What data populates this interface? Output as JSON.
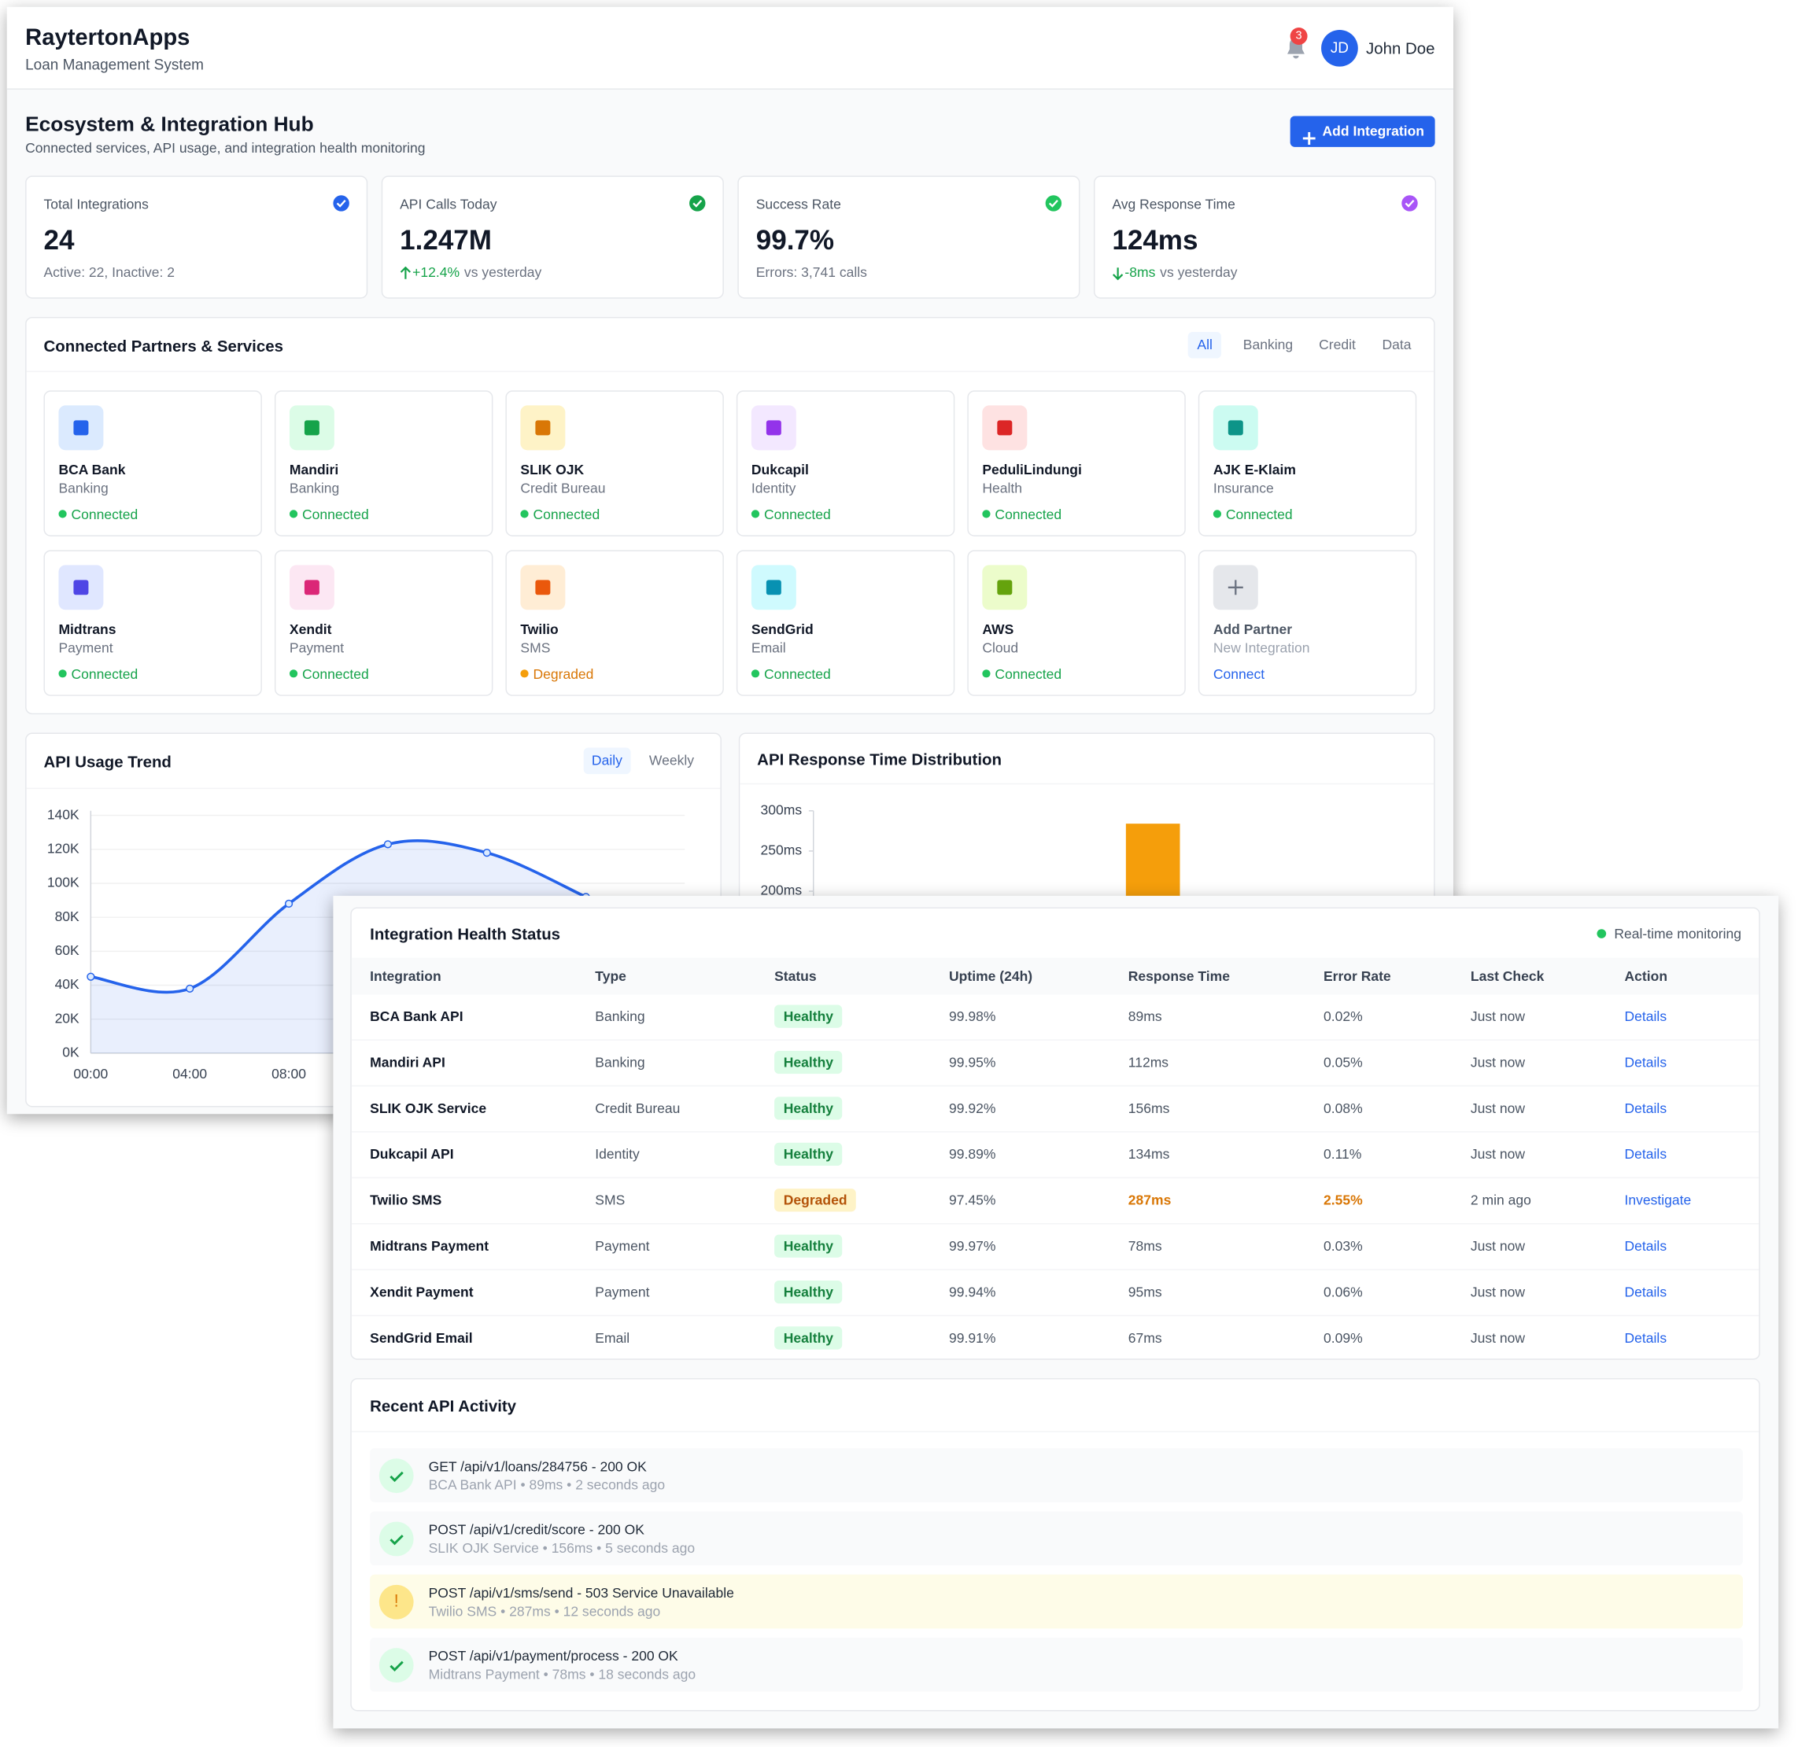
{
  "header": {
    "brand": "RaytertonApps",
    "subtitle": "Loan Management System",
    "notifications": "3",
    "avatar": "JD",
    "user": "John Doe"
  },
  "page": {
    "title": "Ecosystem & Integration Hub",
    "subtitle": "Connected services, API usage, and integration health monitoring",
    "button": "Add Integration"
  },
  "stats": [
    {
      "label": "Total Integrations",
      "value": "24",
      "note": "Active: 22, Inactive: 2",
      "icon_color": "#2563eb"
    },
    {
      "label": "API Calls Today",
      "value": "1.247M",
      "change": "+12.4%",
      "note": "vs yesterday",
      "change_color": "#16a34a",
      "icon_color": "#16a34a"
    },
    {
      "label": "Success Rate",
      "value": "99.7%",
      "note": "Errors: 3,741 calls",
      "icon_color": "#22c55e"
    },
    {
      "label": "Avg Response Time",
      "value": "124ms",
      "change": "-8ms",
      "note": "vs yesterday",
      "change_color": "#16a34a",
      "icon_color": "#a855f7"
    }
  ],
  "partners": {
    "title": "Connected Partners & Services",
    "filters": [
      "All",
      "Banking",
      "Credit",
      "Data"
    ],
    "items": [
      {
        "name": "BCA Bank",
        "type": "Banking",
        "status": "Connected",
        "status_color": "#22c55e",
        "icon_bg": "#dbeafe",
        "icon_color": "#2563eb"
      },
      {
        "name": "Mandiri",
        "type": "Banking",
        "status": "Connected",
        "status_color": "#22c55e",
        "icon_bg": "#dcfce7",
        "icon_color": "#16a34a"
      },
      {
        "name": "SLIK OJK",
        "type": "Credit Bureau",
        "status": "Connected",
        "status_color": "#22c55e",
        "icon_bg": "#fef3c7",
        "icon_color": "#d97706"
      },
      {
        "name": "Dukcapil",
        "type": "Identity",
        "status": "Connected",
        "status_color": "#22c55e",
        "icon_bg": "#f3e8ff",
        "icon_color": "#9333ea"
      },
      {
        "name": "PeduliLindungi",
        "type": "Health",
        "status": "Connected",
        "status_color": "#22c55e",
        "icon_bg": "#fee2e2",
        "icon_color": "#dc2626"
      },
      {
        "name": "AJK E-Klaim",
        "type": "Insurance",
        "status": "Connected",
        "status_color": "#22c55e",
        "icon_bg": "#ccfbf1",
        "icon_color": "#0d9488"
      },
      {
        "name": "Midtrans",
        "type": "Payment",
        "status": "Connected",
        "status_color": "#22c55e",
        "icon_bg": "#e0e7ff",
        "icon_color": "#4f46e5"
      },
      {
        "name": "Xendit",
        "type": "Payment",
        "status": "Connected",
        "status_color": "#22c55e",
        "icon_bg": "#fce7f3",
        "icon_color": "#db2777"
      },
      {
        "name": "Twilio",
        "type": "SMS",
        "status": "Degraded",
        "status_color": "#f59e0b",
        "icon_bg": "#ffedd5",
        "icon_color": "#ea580c"
      },
      {
        "name": "SendGrid",
        "type": "Email",
        "status": "Connected",
        "status_color": "#22c55e",
        "icon_bg": "#cffafe",
        "icon_color": "#0891b2"
      },
      {
        "name": "AWS",
        "type": "Cloud",
        "status": "Connected",
        "status_color": "#22c55e",
        "icon_bg": "#ecfccb",
        "icon_color": "#65a30d"
      }
    ],
    "add": {
      "name": "Add Partner",
      "type": "New Integration",
      "action": "Connect"
    }
  },
  "chart_data": [
    {
      "type": "line",
      "title": "API Usage Trend",
      "toggles": [
        "Daily",
        "Weekly"
      ],
      "color": "#2563eb",
      "categories": [
        "00:00",
        "04:00",
        "08:00",
        null,
        null,
        null
      ],
      "values": [
        45000,
        38000,
        88000,
        123000,
        118000,
        92000
      ],
      "ylim": [
        0,
        140000
      ],
      "yticks": [
        {
          "value": 0,
          "label": "0K"
        },
        {
          "value": 20000,
          "label": "20K"
        },
        {
          "value": 40000,
          "label": "40K"
        },
        {
          "value": 60000,
          "label": "60K"
        },
        {
          "value": 80000,
          "label": "80K"
        },
        {
          "value": 100000,
          "label": "100K"
        },
        {
          "value": 120000,
          "label": "120K"
        },
        {
          "value": 140000,
          "label": "140K"
        }
      ],
      "grid": true
    },
    {
      "type": "bar",
      "title": "API Response Time Distribution",
      "color": "#f59e0b",
      "categories": [
        null
      ],
      "values": [
        284
      ],
      "ylim": [
        0,
        300
      ],
      "yticks": [
        {
          "value": 200,
          "label": "200ms"
        },
        {
          "value": 250,
          "label": "250ms"
        },
        {
          "value": 300,
          "label": "300ms"
        }
      ]
    }
  ],
  "health": {
    "title": "Integration Health Status",
    "live": "Real-time monitoring",
    "columns": [
      "Integration",
      "Type",
      "Status",
      "Uptime (24h)",
      "Response Time",
      "Error Rate",
      "Last Check",
      "Action"
    ],
    "rows": [
      {
        "cells": [
          "BCA Bank API",
          "Banking",
          "Healthy",
          "99.98%",
          "89ms",
          "0.02%",
          "Just now",
          "Details"
        ],
        "status_bg": "#dcfce7",
        "status_color": "#15803d"
      },
      {
        "cells": [
          "Mandiri API",
          "Banking",
          "Healthy",
          "99.95%",
          "112ms",
          "0.05%",
          "Just now",
          "Details"
        ],
        "status_bg": "#dcfce7",
        "status_color": "#15803d"
      },
      {
        "cells": [
          "SLIK OJK Service",
          "Credit Bureau",
          "Healthy",
          "99.92%",
          "156ms",
          "0.08%",
          "Just now",
          "Details"
        ],
        "status_bg": "#dcfce7",
        "status_color": "#15803d"
      },
      {
        "cells": [
          "Dukcapil API",
          "Identity",
          "Healthy",
          "99.89%",
          "134ms",
          "0.11%",
          "Just now",
          "Details"
        ],
        "status_bg": "#dcfce7",
        "status_color": "#15803d"
      },
      {
        "cells": [
          "Twilio SMS",
          "SMS",
          "Degraded",
          "97.45%",
          "287ms",
          "2.55%",
          "2 min ago",
          "Investigate"
        ],
        "status_bg": "#fef3c7",
        "status_color": "#b45309",
        "alert_color": "#d97706"
      },
      {
        "cells": [
          "Midtrans Payment",
          "Payment",
          "Healthy",
          "99.97%",
          "78ms",
          "0.03%",
          "Just now",
          "Details"
        ],
        "status_bg": "#dcfce7",
        "status_color": "#15803d"
      },
      {
        "cells": [
          "Xendit Payment",
          "Payment",
          "Healthy",
          "99.94%",
          "95ms",
          "0.06%",
          "Just now",
          "Details"
        ],
        "status_bg": "#dcfce7",
        "status_color": "#15803d"
      },
      {
        "cells": [
          "SendGrid Email",
          "Email",
          "Healthy",
          "99.91%",
          "67ms",
          "0.09%",
          "Just now",
          "Details"
        ],
        "status_bg": "#dcfce7",
        "status_color": "#15803d"
      }
    ]
  },
  "activity": {
    "title": "Recent API Activity",
    "items": [
      {
        "title": "GET /api/v1/loans/284756 - 200 OK",
        "meta": "BCA Bank API • 89ms • 2 seconds ago",
        "color": "#16a34a",
        "icon_bg": "#dcfce7",
        "background": "#f9fafb"
      },
      {
        "title": "POST /api/v1/credit/score - 200 OK",
        "meta": "SLIK OJK Service • 156ms • 5 seconds ago",
        "color": "#16a34a",
        "icon_bg": "#dcfce7",
        "background": "#f9fafb"
      },
      {
        "title": "POST /api/v1/sms/send - 503 Service Unavailable",
        "meta": "Twilio SMS • 287ms • 12 seconds ago",
        "color": "#d97706",
        "icon_bg": "#fde68a",
        "background": "#fefce8",
        "icon": "!"
      },
      {
        "title": "POST /api/v1/payment/process - 200 OK",
        "meta": "Midtrans Payment • 78ms • 18 seconds ago",
        "color": "#16a34a",
        "icon_bg": "#dcfce7",
        "background": "#f9fafb"
      }
    ]
  }
}
